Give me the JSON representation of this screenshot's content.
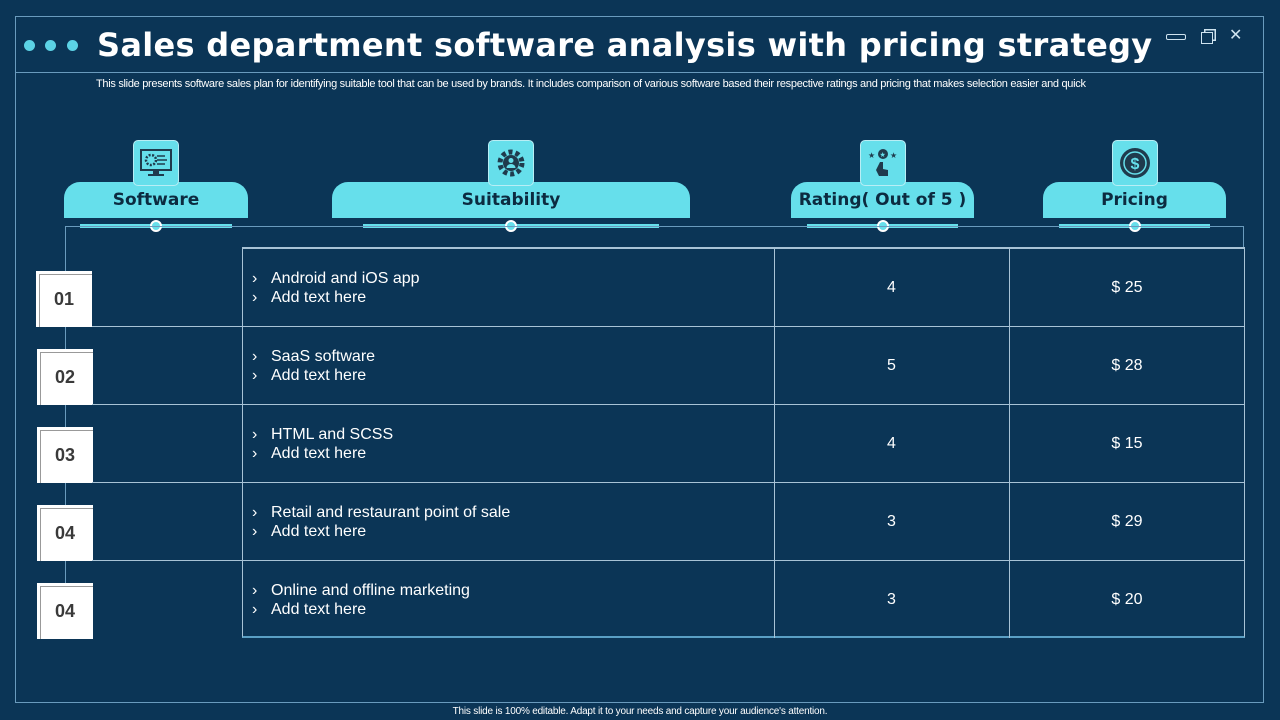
{
  "header": {
    "title": "Sales department software analysis with pricing strategy",
    "subtitle": "This slide presents software sales plan for identifying suitable tool that can be used by brands. It includes comparison of various software based their respective ratings and pricing that makes selection easier and quick",
    "window_controls": [
      "minimize-icon",
      "restore-icon",
      "close-icon"
    ]
  },
  "columns": [
    {
      "label": "Software",
      "icon": "monitor-gear-icon"
    },
    {
      "label": "Suitability",
      "icon": "gear-user-icon"
    },
    {
      "label": "Rating( Out of 5 )",
      "icon": "stars-hand-icon"
    },
    {
      "label": "Pricing",
      "icon": "dollar-coin-icon"
    }
  ],
  "rows": [
    {
      "num": "01",
      "items": [
        "Android and iOS app",
        "Add text here"
      ],
      "rating": "4",
      "price": "$ 25"
    },
    {
      "num": "02",
      "items": [
        "SaaS software",
        "Add text here"
      ],
      "rating": "5",
      "price": "$ 28"
    },
    {
      "num": "03",
      "items": [
        "HTML and SCSS",
        "Add text here"
      ],
      "rating": "4",
      "price": "$ 15"
    },
    {
      "num": "04",
      "items": [
        "Retail and restaurant point of sale",
        "Add text here"
      ],
      "rating": "3",
      "price": "$ 29"
    },
    {
      "num": "04",
      "items": [
        "Online and offline marketing",
        "Add text here"
      ],
      "rating": "3",
      "price": "$ 20"
    }
  ],
  "bullet": "›",
  "footer": "This slide is 100% editable. Adapt it to your needs and capture your audience's attention.",
  "colors": {
    "background": "#0b3556",
    "accent": "#66dfeb",
    "dots": "#5cd3e6"
  }
}
